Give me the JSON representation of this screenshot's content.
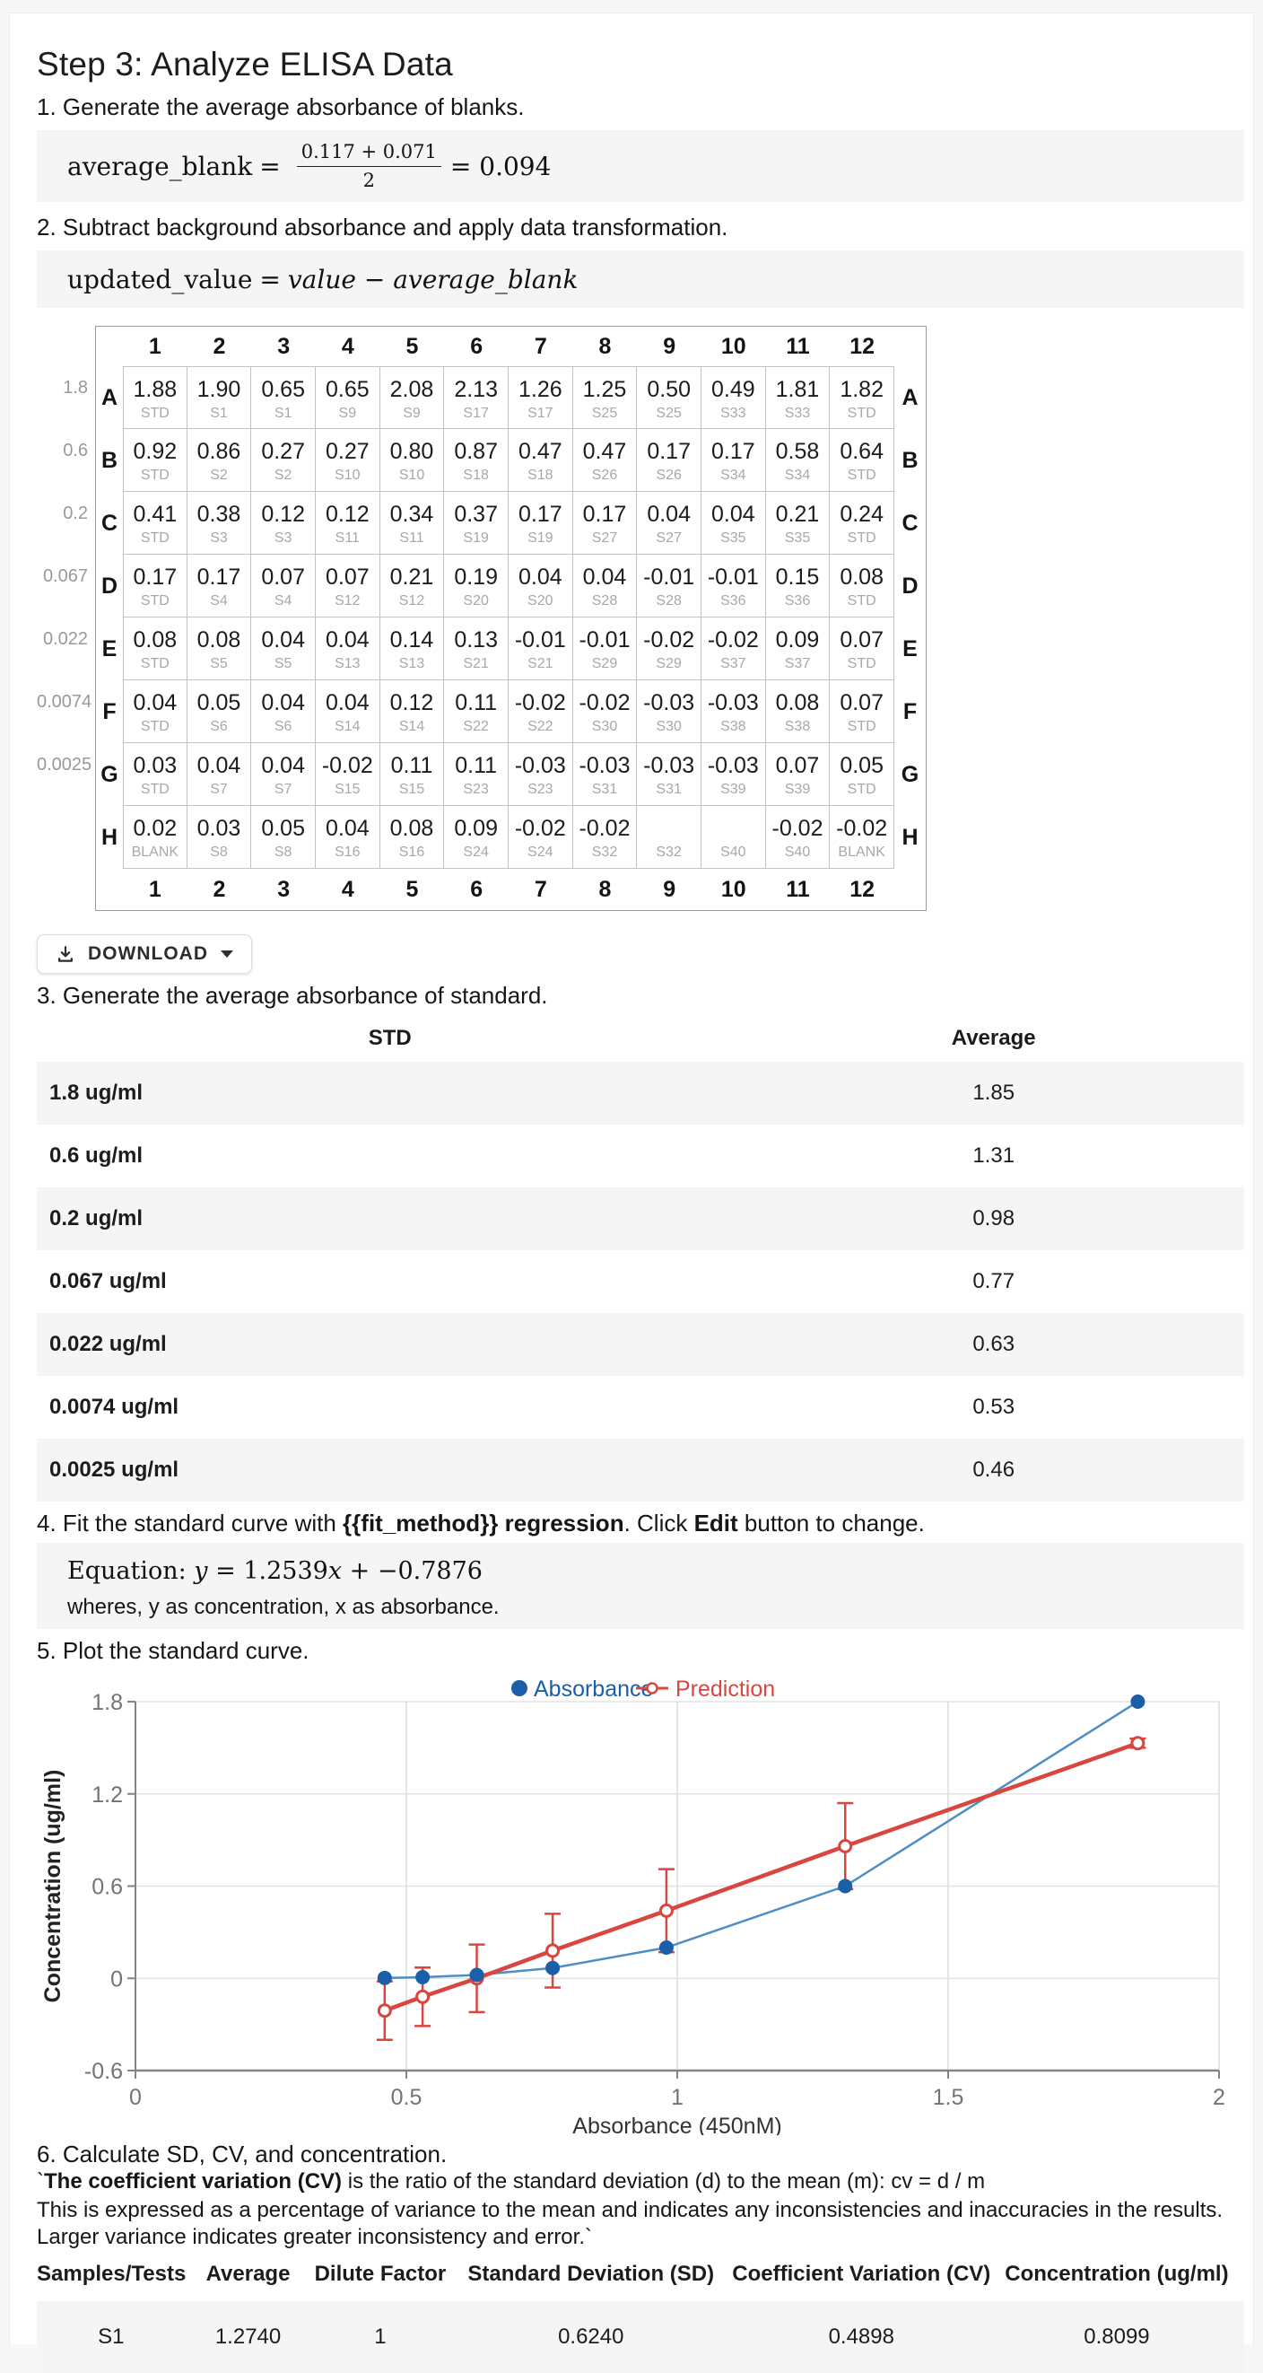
{
  "page": {
    "title": "Step 3: Analyze ELISA Data",
    "steps": {
      "step1": "1. Generate the average absorbance of blanks.",
      "step2": "2. Subtract background absorbance and apply data transformation.",
      "step3": "3. Generate the average absorbance of standard.",
      "step4_prefix": "4. Fit the standard curve with ",
      "step4_bold1": "{{fit_method}} regression",
      "step4_mid": ". Click ",
      "step4_bold2": "Edit",
      "step4_suffix": " button to change.",
      "step5": "5. Plot the standard curve.",
      "step6": "6. Calculate SD, CV, and concentration."
    },
    "formulas": {
      "f1_lhs": "average_blank",
      "f1_eq": "=",
      "f1_num": "0.117 + 0.071",
      "f1_den": "2",
      "f1_res": "= 0.094",
      "f2_lhs": "updated_value",
      "f2_eq": "=",
      "f2_rhs": "value − average_blank"
    },
    "equation": {
      "prefix": "Equation: ",
      "var_y": "y",
      "mid": " = 1.2539",
      "var_x": "x",
      "tail": " + −0.7876",
      "note": "wheres, y as concentration, x as absorbance."
    },
    "download": {
      "label": "DOWNLOAD",
      "icon": "download-icon",
      "caret_icon": "caret-down-icon"
    },
    "cv": {
      "tick": "`",
      "bold": "The coefficient variation (CV)",
      "rest": " is the ratio of the standard deviation (d) to the mean (m): cv = d / m",
      "para": "This is expressed as a percentage of variance to the mean and indicates any inconsistencies and inaccuracies in the results. Larger variance indicates greater inconsistency and error.`"
    }
  },
  "plate": {
    "column_numbers": [
      "1",
      "2",
      "3",
      "4",
      "5",
      "6",
      "7",
      "8",
      "9",
      "10",
      "11",
      "12"
    ],
    "row_letters": [
      "A",
      "B",
      "C",
      "D",
      "E",
      "F",
      "G",
      "H"
    ],
    "left_labels": [
      "1.8",
      "0.6",
      "0.2",
      "0.067",
      "0.022",
      "0.0074",
      "0.0025",
      ""
    ],
    "values": [
      [
        "1.88",
        "1.90",
        "0.65",
        "0.65",
        "2.08",
        "2.13",
        "1.26",
        "1.25",
        "0.50",
        "0.49",
        "1.81",
        "1.82"
      ],
      [
        "0.92",
        "0.86",
        "0.27",
        "0.27",
        "0.80",
        "0.87",
        "0.47",
        "0.47",
        "0.17",
        "0.17",
        "0.58",
        "0.64"
      ],
      [
        "0.41",
        "0.38",
        "0.12",
        "0.12",
        "0.34",
        "0.37",
        "0.17",
        "0.17",
        "0.04",
        "0.04",
        "0.21",
        "0.24"
      ],
      [
        "0.17",
        "0.17",
        "0.07",
        "0.07",
        "0.21",
        "0.19",
        "0.04",
        "0.04",
        "-0.01",
        "-0.01",
        "0.15",
        "0.08"
      ],
      [
        "0.08",
        "0.08",
        "0.04",
        "0.04",
        "0.14",
        "0.13",
        "-0.01",
        "-0.01",
        "-0.02",
        "-0.02",
        "0.09",
        "0.07"
      ],
      [
        "0.04",
        "0.05",
        "0.04",
        "0.04",
        "0.12",
        "0.11",
        "-0.02",
        "-0.02",
        "-0.03",
        "-0.03",
        "0.08",
        "0.07"
      ],
      [
        "0.03",
        "0.04",
        "0.04",
        "-0.02",
        "0.11",
        "0.11",
        "-0.03",
        "-0.03",
        "-0.03",
        "-0.03",
        "0.07",
        "0.05"
      ],
      [
        "0.02",
        "0.03",
        "0.05",
        "0.04",
        "0.08",
        "0.09",
        "-0.02",
        "-0.02",
        "",
        "",
        "-0.02",
        "-0.02"
      ]
    ],
    "labels": [
      [
        "STD",
        "S1",
        "S1",
        "S9",
        "S9",
        "S17",
        "S17",
        "S25",
        "S25",
        "S33",
        "S33",
        "STD"
      ],
      [
        "STD",
        "S2",
        "S2",
        "S10",
        "S10",
        "S18",
        "S18",
        "S26",
        "S26",
        "S34",
        "S34",
        "STD"
      ],
      [
        "STD",
        "S3",
        "S3",
        "S11",
        "S11",
        "S19",
        "S19",
        "S27",
        "S27",
        "S35",
        "S35",
        "STD"
      ],
      [
        "STD",
        "S4",
        "S4",
        "S12",
        "S12",
        "S20",
        "S20",
        "S28",
        "S28",
        "S36",
        "S36",
        "STD"
      ],
      [
        "STD",
        "S5",
        "S5",
        "S13",
        "S13",
        "S21",
        "S21",
        "S29",
        "S29",
        "S37",
        "S37",
        "STD"
      ],
      [
        "STD",
        "S6",
        "S6",
        "S14",
        "S14",
        "S22",
        "S22",
        "S30",
        "S30",
        "S38",
        "S38",
        "STD"
      ],
      [
        "STD",
        "S7",
        "S7",
        "S15",
        "S15",
        "S23",
        "S23",
        "S31",
        "S31",
        "S39",
        "S39",
        "STD"
      ],
      [
        "BLANK",
        "S8",
        "S8",
        "S16",
        "S16",
        "S24",
        "S24",
        "S32",
        "S32",
        "S40",
        "S40",
        "BLANK"
      ]
    ]
  },
  "std_table": {
    "headers": [
      "STD",
      "Average"
    ],
    "rows": [
      [
        "1.8 ug/ml",
        "1.85"
      ],
      [
        "0.6 ug/ml",
        "1.31"
      ],
      [
        "0.2 ug/ml",
        "0.98"
      ],
      [
        "0.067 ug/ml",
        "0.77"
      ],
      [
        "0.022 ug/ml",
        "0.63"
      ],
      [
        "0.0074 ug/ml",
        "0.53"
      ],
      [
        "0.0025 ug/ml",
        "0.46"
      ]
    ]
  },
  "results_table": {
    "headers": [
      "Samples/Tests",
      "Average",
      "Dilute Factor",
      "Standard Deviation (SD)",
      "Coefficient Variation (CV)",
      "Concentration (ug/ml)"
    ],
    "col_widths": [
      12.3,
      10.4,
      11.5,
      23.4,
      21.4,
      20.9
    ],
    "rows": [
      [
        "S1",
        "1.2740",
        "1",
        "0.6240",
        "0.4898",
        "0.8099"
      ]
    ]
  },
  "chart_data": {
    "type": "line",
    "xlabel": "Absorbance (450nM)",
    "ylabel": "Concentration (ug/ml)",
    "xlim": [
      0,
      2
    ],
    "ylim": [
      -0.6,
      1.8
    ],
    "xticks": [
      0,
      0.5,
      1,
      1.5,
      2
    ],
    "yticks": [
      -0.6,
      0,
      0.6,
      1.2,
      1.8
    ],
    "grid": true,
    "legend_position": "top-center",
    "colors": {
      "absorbance_marker": "#1a5fa8",
      "absorbance_line": "#4d8ec5",
      "prediction": "#d9463f",
      "grid_line": "#e3e3e3",
      "axis_line": "#848484",
      "tick_text": "#737373"
    },
    "series": [
      {
        "name": "Absorbance",
        "marker": "filled-circle",
        "x": [
          0.46,
          0.53,
          0.63,
          0.77,
          0.98,
          1.31,
          1.85
        ],
        "y": [
          0.0025,
          0.0074,
          0.022,
          0.067,
          0.2,
          0.6,
          1.8
        ]
      },
      {
        "name": "Prediction",
        "marker": "open-circle",
        "x": [
          0.46,
          0.53,
          0.63,
          0.77,
          0.98,
          1.31,
          1.85
        ],
        "y": [
          -0.21,
          -0.12,
          0.0,
          0.18,
          0.44,
          0.86,
          1.53
        ],
        "error": [
          0.19,
          0.19,
          0.22,
          0.24,
          0.27,
          0.28,
          0.03
        ]
      }
    ]
  }
}
